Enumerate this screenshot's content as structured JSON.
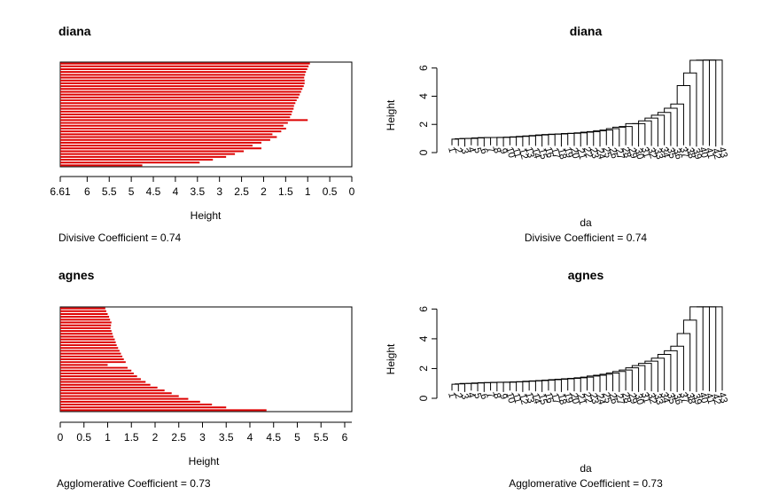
{
  "charts": [
    {
      "type": "banner",
      "title": "diana",
      "xlabel": "Height",
      "xlim": [
        6.61,
        0
      ],
      "ticks": [
        6.61,
        6,
        5.5,
        5,
        4.5,
        4,
        3.5,
        3,
        2.5,
        2,
        1.5,
        1,
        0.5,
        0
      ],
      "tick_labels": [
        "6.61",
        "6",
        "5.5",
        "5",
        "4.5",
        "4",
        "3.5",
        "3",
        "2.5",
        "2",
        "1.5",
        "1",
        "0.5",
        "0"
      ],
      "coef_label": "Divisive Coefficient =",
      "coef_value": "0.74",
      "color": "#dd0000",
      "values": [
        0.95,
        0.98,
        1.01,
        1.04,
        1.06,
        1.08,
        1.07,
        1.07,
        1.09,
        1.12,
        1.15,
        1.18,
        1.21,
        1.25,
        1.28,
        1.31,
        1.32,
        1.35,
        1.37,
        1.4,
        1.0,
        1.45,
        1.55,
        1.49,
        1.6,
        1.8,
        1.7,
        1.85,
        2.05,
        2.25,
        2.05,
        2.45,
        2.65,
        2.85,
        3.15,
        3.45,
        4.75
      ]
    },
    {
      "type": "dendrogram",
      "title": "diana",
      "ylabel": "Height",
      "xlabel": "da",
      "ylim": [
        0,
        6.61
      ],
      "yticks": [
        0,
        2,
        4,
        6
      ],
      "ytick_labels": [
        "0",
        "2",
        "4",
        "6"
      ],
      "leaf_labels": [
        "1",
        "2",
        "3",
        "4",
        "5",
        "6",
        "7",
        "8",
        "9",
        "10",
        "11",
        "12",
        "13",
        "14",
        "15",
        "16",
        "17",
        "18",
        "19",
        "20",
        "21",
        "22",
        "23",
        "24",
        "25",
        "26",
        "27",
        "28",
        "29",
        "30",
        "31",
        "32",
        "33",
        "34",
        "35",
        "36",
        "37",
        "38",
        "39",
        "40",
        "41",
        "42",
        "43"
      ],
      "coef_label": "Divisive Coefficient =",
      "coef_value": "0.74"
    },
    {
      "type": "banner",
      "title": "agnes",
      "xlabel": "Height",
      "xlim": [
        0,
        6.15
      ],
      "ticks": [
        0,
        0.5,
        1,
        1.5,
        2,
        2.5,
        3,
        3.5,
        4,
        4.5,
        5,
        5.5,
        6
      ],
      "tick_labels": [
        "0",
        "0.5",
        "1",
        "1.5",
        "2",
        "2.5",
        "3",
        "3.5",
        "4",
        "4.5",
        "5",
        "5.5",
        "6"
      ],
      "coef_label": "Agglomerative Coefficient =",
      "coef_value": "0.73",
      "color": "#dd0000",
      "values": [
        0.95,
        0.97,
        1.0,
        1.03,
        1.05,
        1.08,
        1.07,
        1.06,
        1.08,
        1.1,
        1.12,
        1.15,
        1.17,
        1.19,
        1.22,
        1.25,
        1.28,
        1.31,
        1.34,
        1.38,
        1.0,
        1.42,
        1.5,
        1.55,
        1.62,
        1.7,
        1.8,
        1.9,
        2.05,
        2.2,
        2.35,
        2.5,
        2.7,
        2.95,
        3.2,
        3.5,
        4.35
      ]
    },
    {
      "type": "dendrogram",
      "title": "agnes",
      "ylabel": "Height",
      "xlabel": "da",
      "ylim": [
        0,
        6.2
      ],
      "yticks": [
        0,
        2,
        4,
        6
      ],
      "ytick_labels": [
        "0",
        "2",
        "4",
        "6"
      ],
      "leaf_labels": [
        "1",
        "2",
        "3",
        "4",
        "5",
        "6",
        "7",
        "8",
        "9",
        "10",
        "11",
        "12",
        "13",
        "14",
        "15",
        "16",
        "17",
        "18",
        "19",
        "20",
        "21",
        "22",
        "23",
        "24",
        "25",
        "26",
        "27",
        "28",
        "29",
        "30",
        "31",
        "32",
        "33",
        "34",
        "35",
        "36",
        "37",
        "38",
        "39",
        "40",
        "41",
        "42",
        "43"
      ],
      "coef_label": "Agglomerative Coefficient =",
      "coef_value": "0.73"
    }
  ]
}
